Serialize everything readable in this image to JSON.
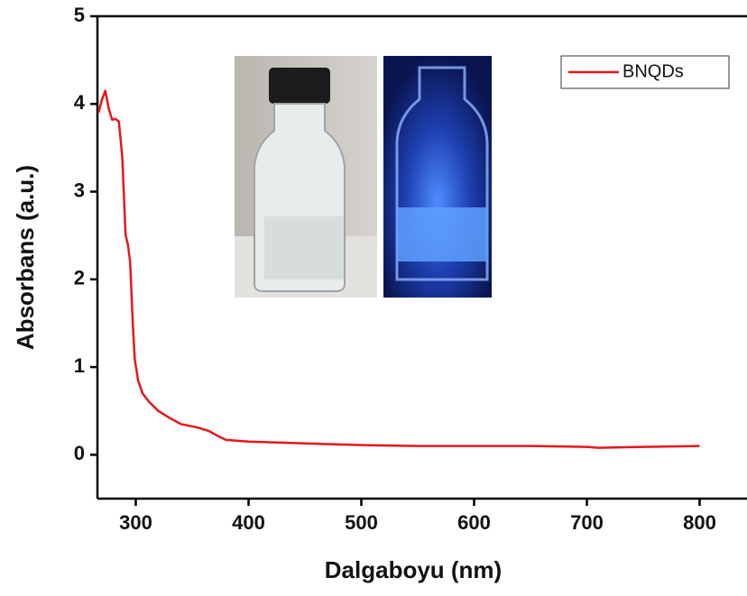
{
  "chart_data": {
    "type": "line",
    "x_label": "Dalgaboyu (nm)",
    "y_label": "Absorbans (a.u.)",
    "x": [
      267,
      270,
      273,
      276,
      279,
      282,
      285,
      288,
      291,
      293,
      295,
      297,
      299,
      302,
      306,
      312,
      320,
      330,
      340,
      355,
      365,
      372,
      380,
      400,
      450,
      500,
      550,
      600,
      650,
      700,
      710,
      750,
      800
    ],
    "series": [
      {
        "name": "BNQDs",
        "color": "#e8141b",
        "values": [
          3.9,
          4.05,
          4.15,
          3.95,
          3.82,
          3.83,
          3.8,
          3.4,
          2.5,
          2.4,
          2.2,
          1.6,
          1.1,
          0.85,
          0.7,
          0.6,
          0.5,
          0.42,
          0.35,
          0.31,
          0.27,
          0.22,
          0.17,
          0.15,
          0.13,
          0.11,
          0.1,
          0.1,
          0.1,
          0.09,
          0.08,
          0.09,
          0.1
        ]
      }
    ],
    "xlim": [
      266,
      842
    ],
    "ylim": [
      -0.5,
      5
    ],
    "xticks": [
      300,
      400,
      500,
      600,
      700,
      800
    ],
    "yticks": [
      0,
      1,
      2,
      3,
      4,
      5
    ],
    "legend": "upper right"
  }
}
